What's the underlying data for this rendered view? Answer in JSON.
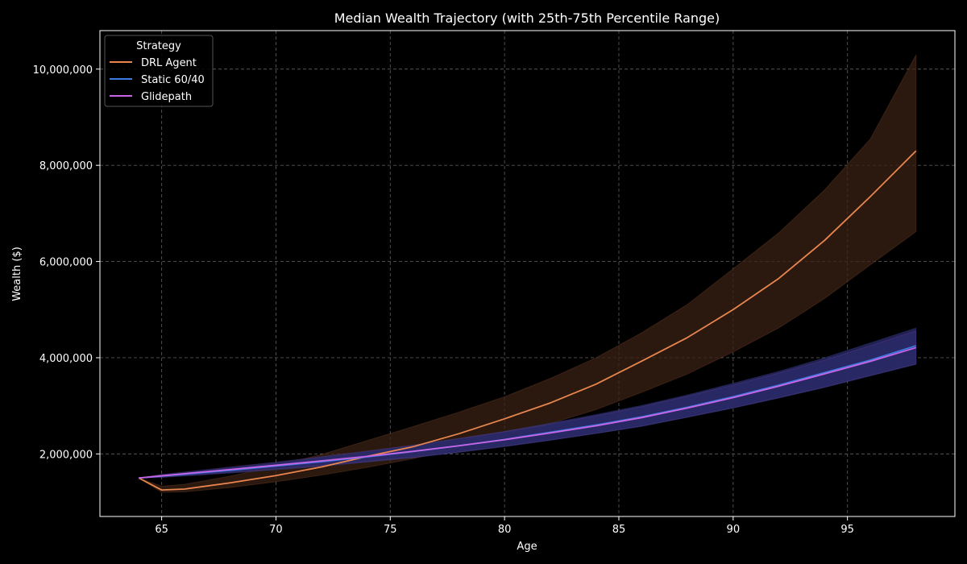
{
  "chart_data": {
    "type": "line",
    "title": "Median Wealth Trajectory (with 25th-75th Percentile Range)",
    "xlabel": "Age",
    "ylabel": "Wealth ($)",
    "xlim": [
      62.3,
      99.7
    ],
    "ylim": [
      700000,
      10800000
    ],
    "xticks": [
      65,
      70,
      75,
      80,
      85,
      90,
      95
    ],
    "xtick_labels": [
      "65",
      "70",
      "75",
      "80",
      "85",
      "90",
      "95"
    ],
    "yticks": [
      2000000,
      4000000,
      6000000,
      8000000,
      10000000
    ],
    "ytick_labels": [
      "2,000,000",
      "4,000,000",
      "6,000,000",
      "8,000,000",
      "10,000,000"
    ],
    "grid": true,
    "legend": {
      "title": "Strategy",
      "position": "top-left",
      "entries": [
        "DRL Agent",
        "Static 60/40",
        "Glidepath"
      ]
    },
    "x": [
      64,
      65,
      66,
      68,
      70,
      72,
      74,
      76,
      78,
      80,
      82,
      84,
      86,
      88,
      90,
      92,
      94,
      96,
      98
    ],
    "series": [
      {
        "name": "DRL Agent",
        "color": "#e8864e",
        "band_color": "#3a2216",
        "values": [
          1500000,
          1250000,
          1270000,
          1400000,
          1550000,
          1730000,
          1950000,
          2150000,
          2420000,
          2730000,
          3060000,
          3450000,
          3930000,
          4420000,
          5000000,
          5650000,
          6440000,
          7350000,
          8300000
        ],
        "p25": [
          1500000,
          1200000,
          1210000,
          1300000,
          1420000,
          1560000,
          1720000,
          1900000,
          2130000,
          2370000,
          2630000,
          2920000,
          3280000,
          3660000,
          4120000,
          4620000,
          5230000,
          5930000,
          6620000
        ],
        "p75": [
          1500000,
          1330000,
          1370000,
          1540000,
          1750000,
          1990000,
          2280000,
          2570000,
          2870000,
          3190000,
          3570000,
          4000000,
          4520000,
          5110000,
          5850000,
          6600000,
          7490000,
          8550000,
          10300000
        ]
      },
      {
        "name": "Static 60/40",
        "color": "#3d7be0",
        "band_color": "#2b2b6b",
        "values": [
          1500000,
          1540000,
          1580000,
          1660000,
          1750000,
          1840000,
          1940000,
          2050000,
          2170000,
          2300000,
          2450000,
          2600000,
          2770000,
          2970000,
          3190000,
          3430000,
          3690000,
          3950000,
          4250000
        ],
        "p25": [
          1500000,
          1510000,
          1540000,
          1600000,
          1670000,
          1740000,
          1830000,
          1920000,
          2030000,
          2150000,
          2280000,
          2420000,
          2570000,
          2760000,
          2950000,
          3160000,
          3380000,
          3620000,
          3860000
        ],
        "p75": [
          1500000,
          1570000,
          1610000,
          1710000,
          1810000,
          1930000,
          2050000,
          2180000,
          2320000,
          2470000,
          2640000,
          2820000,
          3010000,
          3230000,
          3470000,
          3720000,
          4000000,
          4310000,
          4620000
        ]
      },
      {
        "name": "Glidepath",
        "color": "#c864e6",
        "band_color": "#2b2b6b",
        "values": [
          1500000,
          1545000,
          1590000,
          1675000,
          1765000,
          1855000,
          1950000,
          2055000,
          2170000,
          2295000,
          2435000,
          2585000,
          2755000,
          2955000,
          3170000,
          3410000,
          3665000,
          3925000,
          4210000
        ],
        "p25": [
          1500000,
          1515000,
          1550000,
          1615000,
          1690000,
          1760000,
          1845000,
          1930000,
          2040000,
          2160000,
          2290000,
          2430000,
          2580000,
          2765000,
          2960000,
          3170000,
          3390000,
          3630000,
          3870000
        ],
        "p75": [
          1500000,
          1575000,
          1625000,
          1730000,
          1830000,
          1945000,
          2060000,
          2185000,
          2320000,
          2460000,
          2620000,
          2790000,
          2980000,
          3200000,
          3430000,
          3680000,
          3950000,
          4250000,
          4560000
        ]
      }
    ]
  }
}
